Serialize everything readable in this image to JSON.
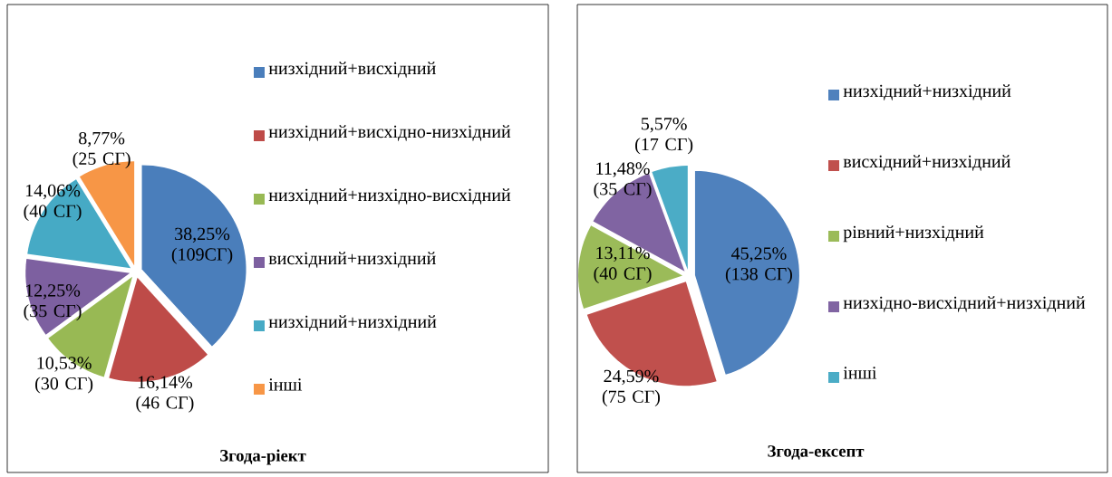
{
  "chart_data": [
    {
      "type": "pie",
      "title": "Згода-ріект",
      "legend": "right",
      "categories": [
        "низхідний+висхідний",
        "низхідний+висхідно-низхідний",
        "низхідний+низхідно-висхідний",
        "висхідний+низхідний",
        "низхідний+низхідний",
        "інші"
      ],
      "values": [
        38.25,
        16.14,
        10.53,
        12.25,
        14.06,
        8.77
      ],
      "colors": [
        "#4a7ebb",
        "#be4b48",
        "#98b954",
        "#7d60a0",
        "#46aac5",
        "#f79646"
      ],
      "value_labels": [
        "38,25% (109СГ)",
        "16,14% (46 СГ)",
        "10,53% (30 СГ)",
        "12,25% (35 СГ)",
        "14,06% (40 СГ)",
        "8,77% (25 СГ)"
      ]
    },
    {
      "type": "pie",
      "title": "Згода-ексепт",
      "legend": "right",
      "categories": [
        "низхідний+низхідний",
        "висхідний+низхідний",
        "рівний+низхідний",
        "низхідно-висхідний+низхідний",
        "інші"
      ],
      "values": [
        45.25,
        24.59,
        13.11,
        11.48,
        5.57
      ],
      "colors": [
        "#4f81bd",
        "#c0504d",
        "#9bbb59",
        "#8064a2",
        "#4bacc6"
      ],
      "value_labels": [
        "45,25% (138 СГ)",
        "24,59% (75 СГ)",
        "13,11% (40 СГ)",
        "11,48% (35 СГ)",
        "5,57% (17 СГ)"
      ]
    }
  ]
}
